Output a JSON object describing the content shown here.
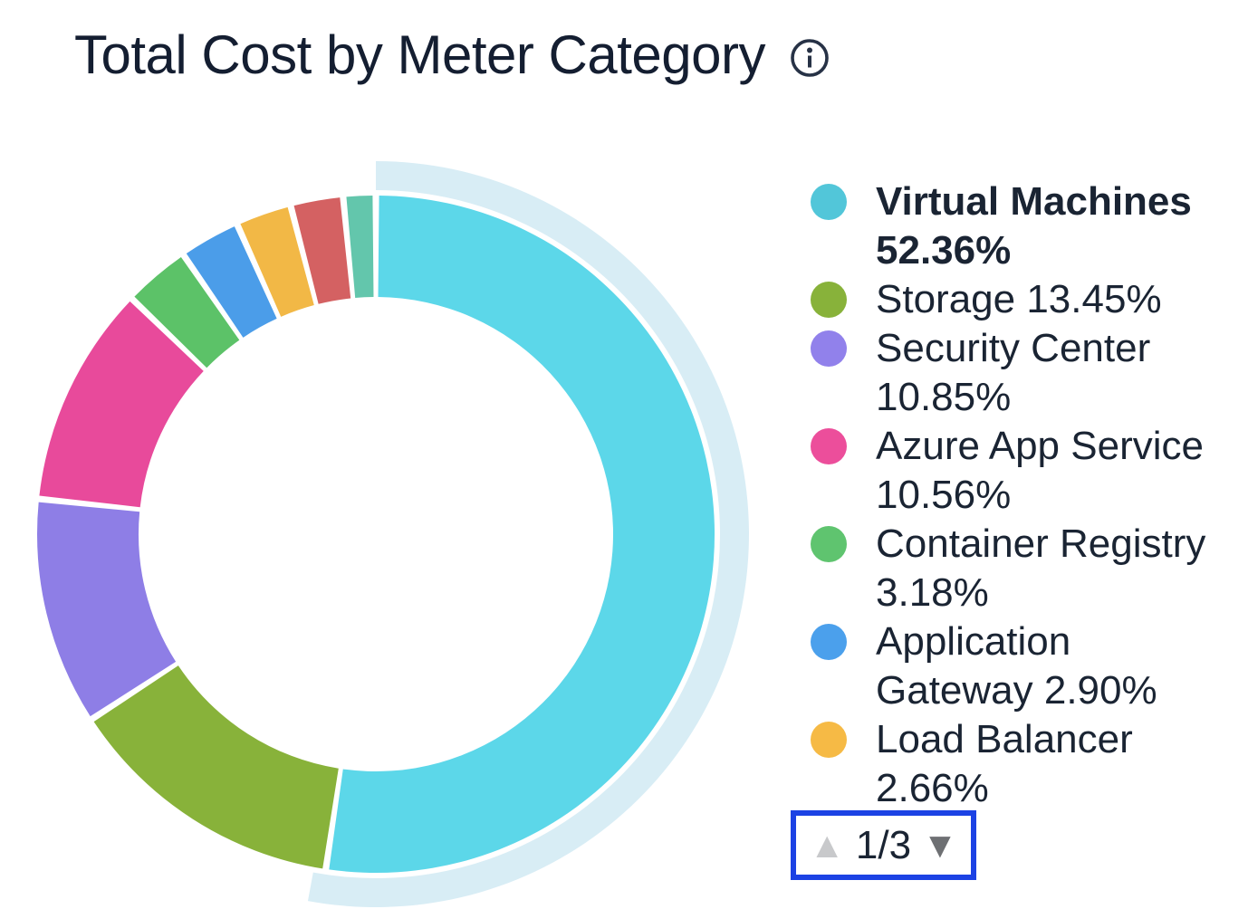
{
  "header": {
    "title": "Total Cost by Meter Category",
    "info_icon": "info-icon",
    "title_color": "#141e31",
    "icon_color": "#273246"
  },
  "chart_data": {
    "type": "donut",
    "title": "Total Cost by Meter Category",
    "unit": "percent",
    "start_angle_deg": 0,
    "direction": "clockwise",
    "legend_position": "right",
    "slices": [
      {
        "label": "Virtual Machines",
        "value": 52.36,
        "color": "#5cd7e9",
        "highlighted": true
      },
      {
        "label": "Storage",
        "value": 13.45,
        "color": "#88b23a"
      },
      {
        "label": "Security Center",
        "value": 10.85,
        "color": "#8e7ee6"
      },
      {
        "label": "Azure App Service",
        "value": 10.56,
        "color": "#e84a9b"
      },
      {
        "label": "Container Registry",
        "value": 3.18,
        "color": "#5cc268"
      },
      {
        "label": "Application Gateway",
        "value": 2.9,
        "color": "#4b9de9"
      },
      {
        "label": "Load Balancer",
        "value": 2.66,
        "color": "#f2b846"
      },
      {
        "label": "",
        "value": 2.5,
        "color": "#d46162"
      },
      {
        "label": "",
        "value": 1.54,
        "color": "#63c6ac"
      }
    ],
    "highlight_ring": {
      "slice_index": 0,
      "color": "#d8edf5"
    }
  },
  "legend": {
    "items": [
      {
        "text": "Virtual Machines\n52.36%",
        "color": "#52c6d9",
        "bold": true
      },
      {
        "text": "Storage 13.45%",
        "color": "#88b23a",
        "bold": false
      },
      {
        "text": "Security Center\n10.85%",
        "color": "#9181eb",
        "bold": false
      },
      {
        "text": "Azure App Service\n10.56%",
        "color": "#ec4e9b",
        "bold": false
      },
      {
        "text": "Container Registry\n3.18%",
        "color": "#5fc46f",
        "bold": false
      },
      {
        "text": "Application\nGateway 2.90%",
        "color": "#4ba0ec",
        "bold": false
      },
      {
        "text": "Load Balancer\n2.66%",
        "color": "#f6ba45",
        "bold": false
      }
    ],
    "pagination": {
      "current": "1/3",
      "up_arrow": "▲",
      "down_arrow": "▼",
      "up_enabled": false,
      "down_enabled": true,
      "up_color": "#c8c9cb",
      "down_color": "#6e7073",
      "focus_border_color": "#1c42e4"
    }
  }
}
